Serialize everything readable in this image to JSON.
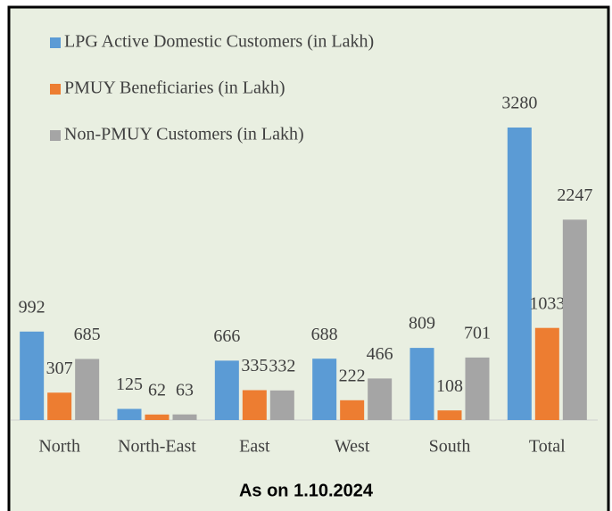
{
  "chart_data": {
    "type": "bar",
    "categories": [
      "North",
      "North-East",
      "East",
      "West",
      "South",
      "Total"
    ],
    "series": [
      {
        "name": "LPG Active Domestic Customers (in Lakh)",
        "color": "#5b9bd5",
        "values": [
          992,
          125,
          666,
          688,
          809,
          3280
        ]
      },
      {
        "name": "PMUY Beneficiaries (in Lakh)",
        "color": "#ed7d31",
        "values": [
          307,
          62,
          335,
          222,
          108,
          1033
        ]
      },
      {
        "name": "Non-PMUY Customers (in Lakh)",
        "color": "#a5a5a5",
        "values": [
          685,
          63,
          332,
          466,
          701,
          2247
        ]
      }
    ],
    "footnote": "As on 1.10.2024"
  }
}
